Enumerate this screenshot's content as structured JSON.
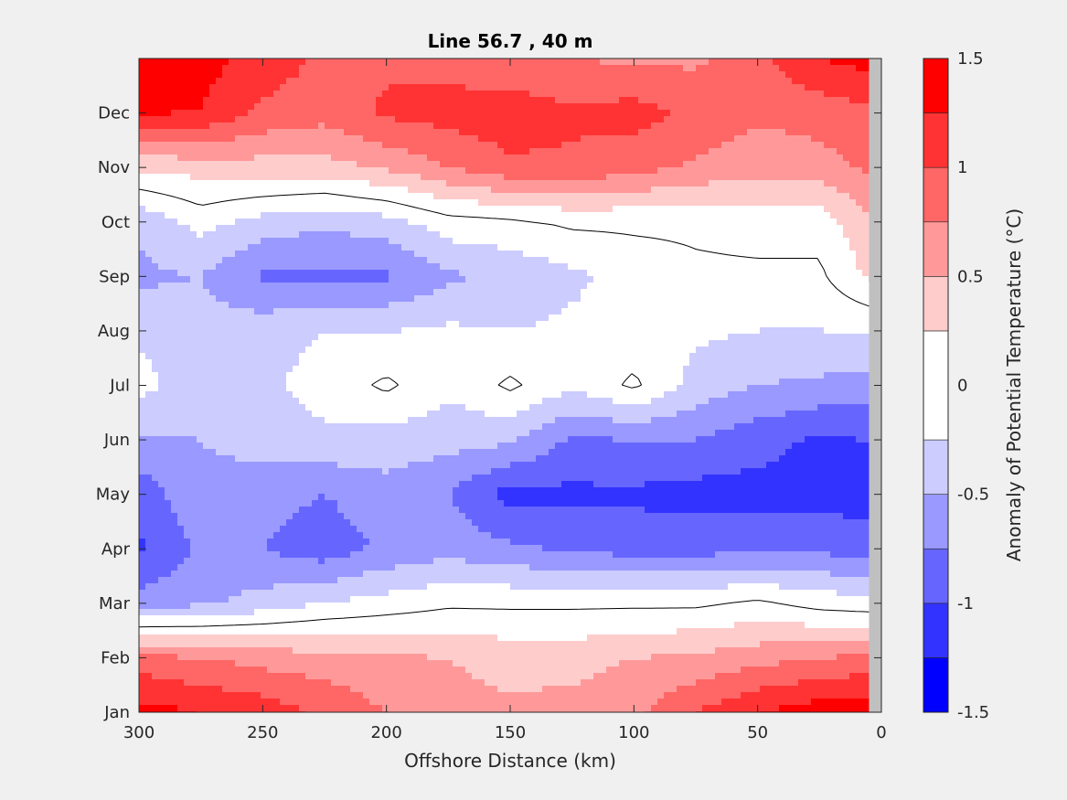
{
  "chart_data": {
    "type": "heatmap",
    "subtype": "filled-contour",
    "title": "Line 56.7 , 40 m",
    "xlabel": "Offshore Distance (km)",
    "ylabel": "",
    "colorbar_label": "Anomaly of Potential Temperature (°C)",
    "x_ticks": [
      "300",
      "250",
      "200",
      "150",
      "100",
      "50",
      "0"
    ],
    "x_tick_values": [
      300,
      250,
      200,
      150,
      100,
      50,
      0
    ],
    "xlim": [
      300,
      0
    ],
    "x_reversed": true,
    "y_ticks": [
      "Jan",
      "Feb",
      "Mar",
      "Apr",
      "May",
      "Jun",
      "Jul",
      "Aug",
      "Sep",
      "Oct",
      "Nov",
      "Dec"
    ],
    "y_tick_values": [
      1,
      2,
      3,
      4,
      5,
      6,
      7,
      8,
      9,
      10,
      11,
      12
    ],
    "ylim": [
      1,
      13
    ],
    "colorbar_ticks": [
      "-1.5",
      "-1",
      "-0.5",
      "0",
      "0.5",
      "1",
      "1.5"
    ],
    "colorbar_tick_values": [
      -1.5,
      -1,
      -0.5,
      0,
      0.5,
      1,
      1.5
    ],
    "color_levels": [
      -1.5,
      -1.25,
      -1.0,
      -0.75,
      -0.5,
      -0.25,
      0.25,
      0.5,
      0.75,
      1.0,
      1.25,
      1.5
    ],
    "colors": [
      "#0000ff",
      "#3333ff",
      "#6666ff",
      "#9999ff",
      "#ccccff",
      "#ffffff",
      "#ffcccc",
      "#ff9999",
      "#ff6666",
      "#ff3333",
      "#ff0000"
    ],
    "contour_lines": [
      0
    ],
    "no_data_color": "#c0c0c0",
    "no_data_region_x": [
      5,
      0
    ],
    "grid": false,
    "anomaly_grid": {
      "x": [
        300,
        275,
        250,
        225,
        200,
        175,
        150,
        125,
        100,
        75,
        50,
        25,
        5
      ],
      "y": [
        1,
        2,
        3,
        4,
        5,
        6,
        7,
        8,
        9,
        10,
        11,
        12,
        13
      ],
      "z": [
        [
          1.35,
          1.25,
          1.15,
          0.95,
          0.75,
          0.6,
          0.55,
          0.6,
          0.7,
          1.0,
          1.25,
          1.4,
          1.45
        ],
        [
          0.85,
          0.75,
          0.65,
          0.6,
          0.55,
          0.5,
          0.4,
          0.4,
          0.5,
          0.55,
          0.65,
          0.75,
          0.8
        ],
        [
          -0.65,
          -0.55,
          -0.4,
          -0.25,
          -0.15,
          -0.05,
          -0.05,
          -0.05,
          -0.05,
          -0.05,
          0.05,
          -0.1,
          -0.15
        ],
        [
          -1.05,
          -0.7,
          -0.75,
          -0.9,
          -0.7,
          -0.6,
          -0.7,
          -0.8,
          -0.85,
          -0.85,
          -0.8,
          -0.8,
          -0.9
        ],
        [
          -0.9,
          -0.55,
          -0.65,
          -0.75,
          -0.6,
          -0.75,
          -1.1,
          -1.05,
          -1.05,
          -1.1,
          -1.1,
          -1.1,
          -1.1
        ],
        [
          -0.55,
          -0.5,
          -0.4,
          -0.3,
          -0.35,
          -0.4,
          -0.45,
          -0.8,
          -0.75,
          -0.75,
          -0.9,
          -1.05,
          -1.0
        ],
        [
          -0.15,
          -0.45,
          -0.3,
          -0.15,
          0.05,
          -0.2,
          0.05,
          -0.2,
          0.05,
          -0.35,
          -0.5,
          -0.55,
          -0.6
        ],
        [
          -0.3,
          -0.4,
          -0.35,
          -0.25,
          -0.25,
          -0.2,
          -0.25,
          -0.2,
          -0.15,
          -0.2,
          -0.25,
          -0.25,
          -0.25
        ],
        [
          -0.55,
          -0.5,
          -0.8,
          -0.8,
          -0.8,
          -0.55,
          -0.45,
          -0.3,
          -0.15,
          -0.05,
          -0.05,
          -0.05,
          0.3
        ],
        [
          -0.45,
          -0.15,
          -0.35,
          -0.45,
          -0.35,
          -0.1,
          -0.05,
          0.05,
          0.05,
          0.05,
          0.1,
          0.1,
          0.45
        ],
        [
          0.3,
          0.35,
          0.4,
          0.4,
          0.55,
          0.75,
          0.95,
          0.95,
          0.85,
          0.7,
          0.6,
          0.65,
          0.8
        ],
        [
          1.3,
          1.25,
          0.95,
          0.85,
          1.05,
          1.1,
          1.15,
          1.05,
          1.1,
          0.95,
          0.8,
          0.85,
          0.95
        ],
        [
          1.45,
          1.35,
          1.15,
          0.95,
          0.95,
          0.9,
          0.8,
          0.75,
          0.7,
          0.7,
          0.95,
          1.25,
          1.35
        ]
      ]
    }
  }
}
